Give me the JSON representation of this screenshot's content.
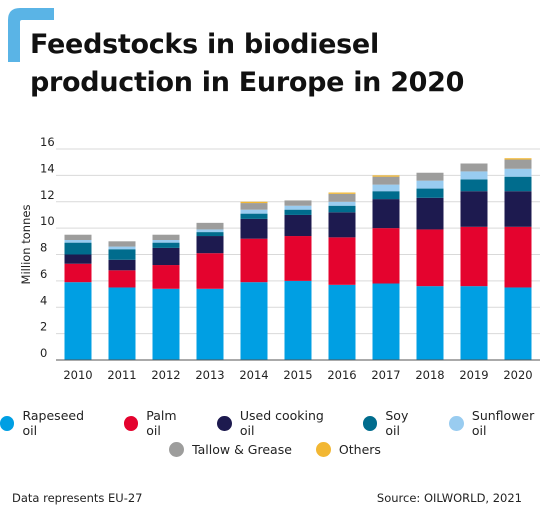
{
  "chart_data": {
    "type": "bar",
    "stacked": true,
    "title": "Feedstocks in biodiesel production in Europe in 2020",
    "ylabel": "Million tonnes",
    "xlabel": "",
    "ylim": [
      0,
      16
    ],
    "yticks": [
      "0",
      "2",
      "4",
      "6",
      "8",
      "10",
      "12",
      "14",
      "16"
    ],
    "grid": true,
    "legend_position": "bottom",
    "categories": [
      "2010",
      "2011",
      "2012",
      "2013",
      "2014",
      "2015",
      "2016",
      "2017",
      "2018",
      "2019",
      "2020"
    ],
    "series": [
      {
        "name": "Rapeseed oil",
        "color": "#009fe3",
        "values": [
          5.9,
          5.5,
          5.4,
          5.4,
          5.9,
          6.0,
          5.7,
          5.8,
          5.6,
          5.6,
          5.5
        ]
      },
      {
        "name": "Palm oil",
        "color": "#e4032e",
        "values": [
          1.4,
          1.3,
          1.8,
          2.7,
          3.3,
          3.4,
          3.6,
          4.2,
          4.3,
          4.5,
          4.6
        ]
      },
      {
        "name": "Used cooking oil",
        "color": "#1d1a4f",
        "values": [
          0.7,
          0.8,
          1.3,
          1.3,
          1.5,
          1.6,
          1.9,
          2.2,
          2.4,
          2.7,
          2.7
        ]
      },
      {
        "name": "Soy oil",
        "color": "#006c8d",
        "values": [
          0.9,
          0.8,
          0.4,
          0.3,
          0.4,
          0.4,
          0.5,
          0.6,
          0.7,
          0.9,
          1.1
        ]
      },
      {
        "name": "Sunflower oil",
        "color": "#99ccf0",
        "values": [
          0.2,
          0.2,
          0.2,
          0.2,
          0.3,
          0.3,
          0.3,
          0.5,
          0.6,
          0.6,
          0.6
        ]
      },
      {
        "name": "Tallow & Grease",
        "color": "#9d9d9c",
        "values": [
          0.4,
          0.4,
          0.4,
          0.5,
          0.5,
          0.4,
          0.6,
          0.6,
          0.6,
          0.6,
          0.7
        ]
      },
      {
        "name": "Others",
        "color": "#f2b733",
        "values": [
          0.0,
          0.0,
          0.0,
          0.0,
          0.1,
          0.0,
          0.1,
          0.1,
          0.0,
          0.0,
          0.1
        ]
      }
    ]
  },
  "footer": {
    "note": "Data represents EU-27",
    "source": "Source: OILWORLD, 2021"
  },
  "colors": {
    "accent": "#5ab4e6",
    "grid": "#d9d9d9",
    "axis": "#555555"
  }
}
